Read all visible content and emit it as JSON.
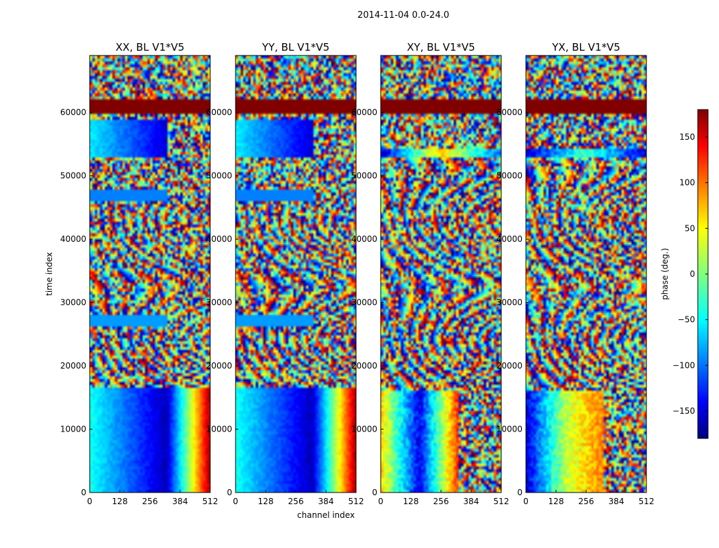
{
  "chart_data": {
    "type": "heatmap",
    "title": "2014-11-04 0.0-24.0",
    "xlabel": "channel index",
    "ylabel": "time index",
    "xlim": [
      0,
      512
    ],
    "ylim": [
      0,
      69000
    ],
    "xticks": [
      0,
      128,
      256,
      384,
      512
    ],
    "yticks": [
      0,
      10000,
      20000,
      30000,
      40000,
      50000,
      60000
    ],
    "colormap": "jet",
    "colorbar": {
      "label": "phase (deg.)",
      "range": [
        -180,
        180
      ],
      "ticks": [
        150,
        100,
        50,
        0,
        -50,
        -100,
        -150
      ],
      "tick_labels": [
        "150",
        "100",
        "50",
        "0",
        "−50",
        "−100",
        "−150"
      ]
    },
    "panels": [
      {
        "title": "XX, BL V1*V5",
        "regions": [
          {
            "t": [
              0,
              16500
            ],
            "ch": [
              0,
              330
            ],
            "pattern": "gradient",
            "phase": [
              -40,
              -160
            ]
          },
          {
            "t": [
              0,
              16500
            ],
            "ch": [
              330,
              512
            ],
            "pattern": "gradient",
            "phase": [
              -150,
              170
            ]
          },
          {
            "t": [
              16500,
              26000
            ],
            "ch": [
              0,
              512
            ],
            "pattern": "fringes"
          },
          {
            "t": [
              26000,
              28000
            ],
            "ch": [
              0,
              330
            ],
            "pattern": "uniform",
            "phase": -80
          },
          {
            "t": [
              28000,
              46000
            ],
            "ch": [
              0,
              512
            ],
            "pattern": "fringes"
          },
          {
            "t": [
              46000,
              48000
            ],
            "ch": [
              0,
              330
            ],
            "pattern": "uniform",
            "phase": -90
          },
          {
            "t": [
              48000,
              53000
            ],
            "ch": [
              0,
              512
            ],
            "pattern": "noise"
          },
          {
            "t": [
              53000,
              59000
            ],
            "ch": [
              0,
              330
            ],
            "pattern": "gradient",
            "phase": [
              -50,
              -150
            ]
          },
          {
            "t": [
              60000,
              62000
            ],
            "ch": [
              0,
              512
            ],
            "pattern": "uniform",
            "phase": 180
          },
          {
            "t": [
              62000,
              69000
            ],
            "ch": [
              0,
              512
            ],
            "pattern": "noise"
          }
        ]
      },
      {
        "title": "YY, BL V1*V5",
        "regions": [
          {
            "t": [
              0,
              16500
            ],
            "ch": [
              0,
              330
            ],
            "pattern": "gradient",
            "phase": [
              -40,
              -160
            ]
          },
          {
            "t": [
              0,
              16500
            ],
            "ch": [
              330,
              512
            ],
            "pattern": "gradient",
            "phase": [
              -150,
              170
            ]
          },
          {
            "t": [
              16500,
              26000
            ],
            "ch": [
              0,
              512
            ],
            "pattern": "fringes"
          },
          {
            "t": [
              26000,
              28000
            ],
            "ch": [
              0,
              330
            ],
            "pattern": "uniform",
            "phase": -80
          },
          {
            "t": [
              28000,
              46000
            ],
            "ch": [
              0,
              512
            ],
            "pattern": "fringes"
          },
          {
            "t": [
              46000,
              48000
            ],
            "ch": [
              0,
              330
            ],
            "pattern": "uniform",
            "phase": -90
          },
          {
            "t": [
              48000,
              53000
            ],
            "ch": [
              0,
              512
            ],
            "pattern": "noise"
          },
          {
            "t": [
              53000,
              59000
            ],
            "ch": [
              0,
              330
            ],
            "pattern": "gradient",
            "phase": [
              -50,
              -150
            ]
          },
          {
            "t": [
              60000,
              62000
            ],
            "ch": [
              0,
              512
            ],
            "pattern": "uniform",
            "phase": 180
          },
          {
            "t": [
              62000,
              69000
            ],
            "ch": [
              0,
              512
            ],
            "pattern": "noise"
          }
        ]
      },
      {
        "title": "XY, BL V1*V5",
        "regions": [
          {
            "t": [
              0,
              16000
            ],
            "ch": [
              0,
              330
            ],
            "pattern": "banded",
            "phase": [
              60,
              -140,
              120
            ]
          },
          {
            "t": [
              0,
              16000
            ],
            "ch": [
              330,
              512
            ],
            "pattern": "noise"
          },
          {
            "t": [
              16000,
              53000
            ],
            "ch": [
              0,
              512
            ],
            "pattern": "fringes"
          },
          {
            "t": [
              53000,
              54500
            ],
            "ch": [
              0,
              512
            ],
            "pattern": "banded",
            "phase": [
              -150,
              60,
              -100
            ]
          },
          {
            "t": [
              60000,
              62000
            ],
            "ch": [
              0,
              512
            ],
            "pattern": "uniform",
            "phase": 180
          },
          {
            "t": [
              62000,
              69000
            ],
            "ch": [
              0,
              512
            ],
            "pattern": "noise"
          }
        ]
      },
      {
        "title": "YX, BL V1*V5",
        "regions": [
          {
            "t": [
              0,
              16000
            ],
            "ch": [
              0,
              330
            ],
            "pattern": "banded",
            "phase": [
              -150,
              20,
              90
            ]
          },
          {
            "t": [
              0,
              16000
            ],
            "ch": [
              330,
              512
            ],
            "pattern": "noise"
          },
          {
            "t": [
              16000,
              53000
            ],
            "ch": [
              0,
              512
            ],
            "pattern": "fringes"
          },
          {
            "t": [
              53000,
              54500
            ],
            "ch": [
              0,
              512
            ],
            "pattern": "banded",
            "phase": [
              -150,
              -20,
              -150
            ]
          },
          {
            "t": [
              60000,
              62000
            ],
            "ch": [
              0,
              512
            ],
            "pattern": "uniform",
            "phase": 180
          },
          {
            "t": [
              62000,
              69000
            ],
            "ch": [
              0,
              512
            ],
            "pattern": "noise"
          }
        ]
      }
    ]
  }
}
